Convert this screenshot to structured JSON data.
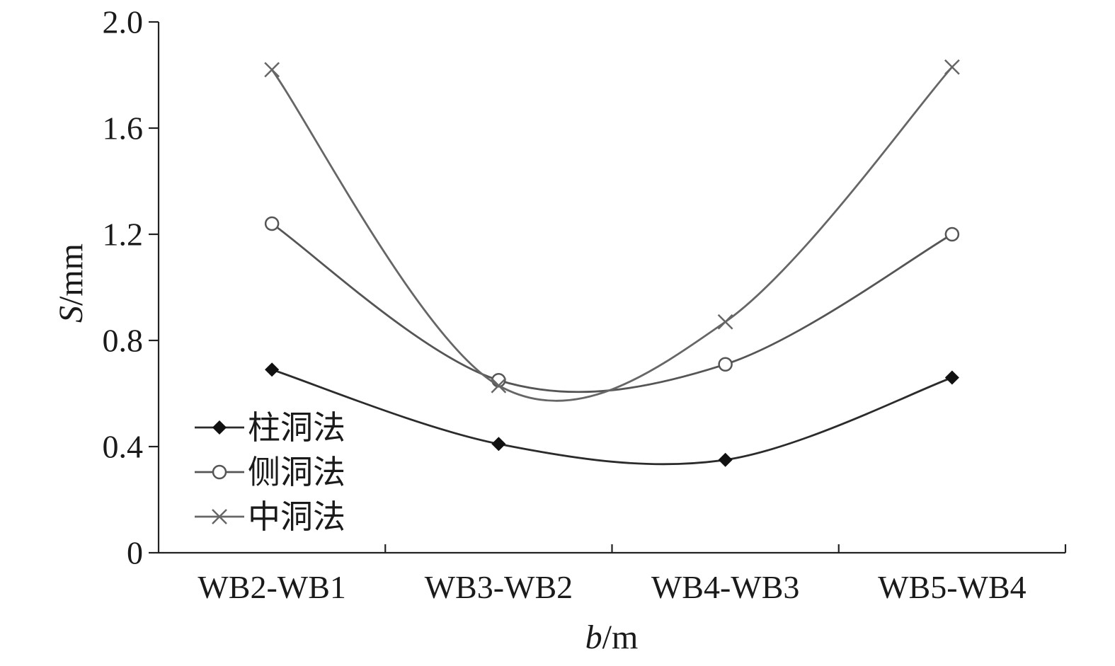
{
  "chart_data": {
    "type": "line",
    "categories": [
      "WB2-WB1",
      "WB3-WB2",
      "WB4-WB3",
      "WB5-WB4"
    ],
    "series": [
      {
        "name": "柱洞法",
        "values": [
          0.69,
          0.41,
          0.35,
          0.66
        ],
        "marker": "filled-diamond",
        "color": "#2b2b2b"
      },
      {
        "name": "侧洞法",
        "values": [
          1.24,
          0.65,
          0.71,
          1.2
        ],
        "marker": "open-circle",
        "color": "#555555"
      },
      {
        "name": "中洞法",
        "values": [
          1.82,
          0.63,
          0.87,
          1.83
        ],
        "marker": "x-cross",
        "color": "#666666"
      }
    ],
    "xlabel_italic": "b",
    "xlabel_unit": "/m",
    "ylabel_italic": "S",
    "ylabel_unit": "/mm",
    "ylim": [
      0,
      2.0
    ],
    "yticks": [
      "0",
      "0.4",
      "0.8",
      "1.2",
      "1.6",
      "2.0"
    ],
    "ytick_values": [
      0,
      0.4,
      0.8,
      1.2,
      1.6,
      2.0
    ],
    "grid": false,
    "legend_placement": "bottom-left",
    "smooth": true
  }
}
